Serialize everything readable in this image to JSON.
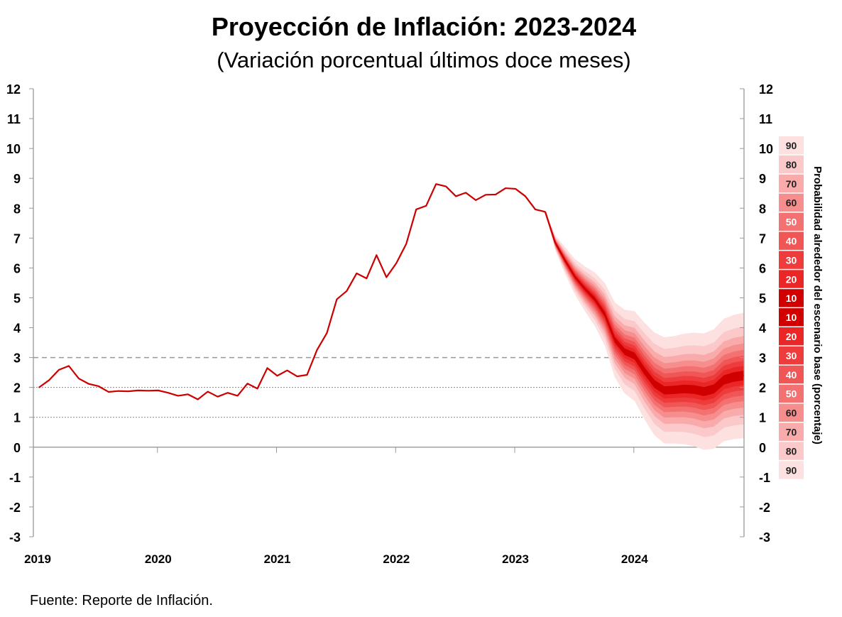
{
  "chart_data": {
    "type": "line",
    "title": "Proyección de Inflación: 2023-2024",
    "subtitle": "(Variación porcentual últimos doce meses)",
    "xlabel": "",
    "ylabel": "",
    "ylim": [
      -3,
      12
    ],
    "yticks": [
      12,
      11,
      10,
      9,
      8,
      7,
      6,
      5,
      4,
      3,
      2,
      1,
      0,
      -1,
      -2,
      -3
    ],
    "xtick_labels": [
      "2019",
      "2020",
      "2021",
      "2022",
      "2023",
      "2024"
    ],
    "start_month": "2019-01",
    "history": [
      2.0,
      2.24,
      2.59,
      2.72,
      2.3,
      2.12,
      2.04,
      1.85,
      1.88,
      1.87,
      1.9,
      1.89,
      1.9,
      1.82,
      1.72,
      1.77,
      1.6,
      1.86,
      1.69,
      1.82,
      1.72,
      2.13,
      1.96,
      2.65,
      2.39,
      2.57,
      2.37,
      2.42,
      3.25,
      3.82,
      4.95,
      5.23,
      5.82,
      5.65,
      6.43,
      5.69,
      6.16,
      6.81,
      7.96,
      8.08,
      8.81,
      8.73,
      8.4,
      8.52,
      8.27,
      8.45,
      8.46,
      8.67,
      8.65,
      8.4,
      7.96,
      7.88
    ],
    "projection_central": [
      6.85,
      6.25,
      5.7,
      5.3,
      4.95,
      4.45,
      3.6,
      3.2,
      3.05,
      2.55,
      2.12,
      1.9,
      1.92,
      1.95,
      1.93,
      1.86,
      1.95,
      2.25,
      2.35,
      2.4
    ],
    "projection_90_halfwidth": [
      0.25,
      0.45,
      0.6,
      0.75,
      0.9,
      1.05,
      1.25,
      1.4,
      1.5,
      1.62,
      1.72,
      1.78,
      1.8,
      1.85,
      1.9,
      1.95,
      2.0,
      2.05,
      2.08,
      2.1
    ],
    "reference_lines": [
      {
        "y": 3,
        "style": "dashed"
      },
      {
        "y": 2,
        "style": "dotted"
      },
      {
        "y": 1,
        "style": "dotted"
      },
      {
        "y": 0,
        "style": "solid"
      }
    ],
    "line_color": "#cc0000",
    "fan_legend": {
      "title": "Probabilidad alrededor del escenario base (porcentaje)",
      "labels": [
        "90",
        "80",
        "70",
        "60",
        "50",
        "40",
        "30",
        "20",
        "10",
        "10",
        "20",
        "30",
        "40",
        "50",
        "60",
        "70",
        "80",
        "90"
      ],
      "levels": [
        90,
        80,
        70,
        60,
        50,
        40,
        30,
        20,
        10
      ],
      "colors": {
        "90": "#fde0e0",
        "80": "#fbc9c9",
        "70": "#f9abab",
        "60": "#f78e8e",
        "50": "#f47171",
        "40": "#f15656",
        "30": "#ee3c3c",
        "20": "#ea2626",
        "10": "#d00000"
      }
    }
  },
  "source": "Fuente: Reporte de Inflación."
}
